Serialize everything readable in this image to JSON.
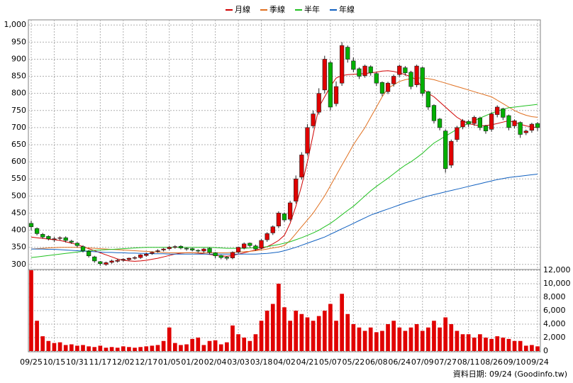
{
  "chart_data": {
    "type": "candlestick",
    "categories": [
      "09/25",
      null,
      null,
      null,
      "10/15",
      null,
      null,
      null,
      "10/31",
      null,
      null,
      null,
      "11/17",
      null,
      null,
      null,
      "12/02",
      null,
      null,
      null,
      "12/17",
      null,
      null,
      null,
      "01/05",
      null,
      null,
      null,
      "01/20",
      null,
      null,
      null,
      "02/04",
      null,
      null,
      null,
      "03/03",
      null,
      null,
      null,
      "03/18",
      null,
      null,
      null,
      "04/02",
      null,
      null,
      null,
      "04/21",
      null,
      null,
      null,
      "05/07",
      null,
      null,
      null,
      "05/22",
      null,
      null,
      null,
      "06/08",
      null,
      null,
      null,
      "06/24",
      null,
      null,
      null,
      "07/09",
      null,
      null,
      null,
      "07/27",
      null,
      null,
      null,
      "08/11",
      null,
      null,
      null,
      "08/26",
      null,
      null,
      null,
      "09/10",
      null,
      null,
      null,
      "09/24"
    ],
    "open": [
      420,
      405,
      388,
      382,
      372,
      376,
      378,
      368,
      362,
      352,
      338,
      322,
      308,
      300,
      306,
      309,
      312,
      314,
      318,
      320,
      326,
      332,
      338,
      342,
      346,
      350,
      353,
      347,
      346,
      341,
      339,
      347,
      334,
      326,
      321,
      319,
      336,
      348,
      362,
      354,
      348,
      372,
      392,
      412,
      448,
      432,
      485,
      555,
      625,
      705,
      745,
      810,
      890,
      770,
      830,
      935,
      895,
      872,
      852,
      878,
      858,
      832,
      805,
      828,
      855,
      875,
      862,
      825,
      875,
      805,
      765,
      725,
      690,
      590,
      665,
      702,
      718,
      712,
      728,
      705,
      695,
      738,
      755,
      735,
      705,
      715,
      685,
      692,
      712
    ],
    "high": [
      428,
      408,
      392,
      385,
      380,
      382,
      382,
      372,
      365,
      356,
      342,
      325,
      310,
      308,
      314,
      316,
      318,
      320,
      324,
      330,
      334,
      338,
      344,
      348,
      354,
      356,
      356,
      350,
      348,
      344,
      348,
      350,
      336,
      328,
      324,
      338,
      352,
      364,
      364,
      358,
      374,
      394,
      414,
      455,
      452,
      486,
      560,
      628,
      710,
      750,
      815,
      910,
      895,
      835,
      950,
      940,
      905,
      876,
      884,
      882,
      862,
      835,
      834,
      855,
      884,
      880,
      866,
      884,
      878,
      808,
      768,
      728,
      695,
      665,
      705,
      725,
      722,
      735,
      732,
      708,
      745,
      765,
      758,
      738,
      724,
      718,
      694,
      714,
      716
    ],
    "low": [
      400,
      385,
      375,
      370,
      366,
      370,
      364,
      360,
      350,
      335,
      320,
      305,
      296,
      296,
      302,
      305,
      308,
      310,
      314,
      316,
      322,
      328,
      334,
      338,
      342,
      346,
      344,
      340,
      338,
      335,
      334,
      330,
      318,
      315,
      312,
      315,
      332,
      344,
      350,
      340,
      344,
      366,
      386,
      406,
      424,
      426,
      478,
      548,
      618,
      698,
      738,
      800,
      750,
      762,
      822,
      890,
      862,
      842,
      846,
      852,
      822,
      792,
      798,
      820,
      848,
      852,
      812,
      818,
      792,
      752,
      712,
      692,
      568,
      582,
      658,
      695,
      702,
      705,
      692,
      682,
      688,
      730,
      722,
      692,
      698,
      670,
      678,
      685,
      690
    ],
    "close": [
      410,
      390,
      380,
      375,
      375,
      378,
      370,
      365,
      355,
      340,
      325,
      310,
      302,
      305,
      310,
      312,
      315,
      318,
      320,
      328,
      330,
      335,
      340,
      345,
      350,
      352,
      348,
      345,
      342,
      340,
      345,
      335,
      325,
      320,
      318,
      335,
      350,
      360,
      355,
      345,
      370,
      390,
      410,
      450,
      430,
      480,
      550,
      620,
      700,
      740,
      800,
      900,
      760,
      820,
      940,
      900,
      870,
      850,
      880,
      860,
      830,
      800,
      830,
      850,
      880,
      860,
      820,
      880,
      800,
      760,
      720,
      700,
      580,
      660,
      700,
      720,
      710,
      730,
      700,
      690,
      740,
      760,
      730,
      700,
      720,
      680,
      690,
      710,
      700
    ],
    "up_color": "#e00000",
    "down_color": "#00b000",
    "series": [
      {
        "name": "月線",
        "color": "#d00000",
        "values": [
          380,
          378,
          376,
          374,
          372,
          370,
          366,
          362,
          358,
          352,
          346,
          340,
          334,
          328,
          322,
          316,
          312,
          310,
          309,
          310,
          312,
          315,
          318,
          322,
          326,
          330,
          333,
          334,
          334,
          333,
          331,
          329,
          327,
          325,
          324,
          326,
          330,
          334,
          338,
          342,
          346,
          352,
          360,
          370,
          385,
          420,
          470,
          530,
          600,
          680,
          760,
          790,
          820,
          845,
          852,
          855,
          856,
          857,
          858,
          860,
          862,
          865,
          866,
          864,
          860,
          855,
          848,
          840,
          815,
          800,
          790,
          775,
          760,
          745,
          730,
          720,
          712,
          708,
          705,
          706,
          708,
          712,
          716,
          720,
          715,
          710,
          705,
          702,
          700
        ]
      },
      {
        "name": "季線",
        "color": "#e07020",
        "values": [
          345,
          346,
          347,
          348,
          349,
          350,
          350,
          350,
          350,
          349,
          348,
          347,
          346,
          345,
          344,
          343,
          342,
          341,
          340,
          339,
          338,
          337,
          336,
          335,
          334,
          334,
          334,
          334,
          334,
          334,
          334,
          334,
          334,
          334,
          334,
          335,
          336,
          337,
          338,
          340,
          342,
          345,
          348,
          351,
          355,
          370,
          390,
          410,
          430,
          450,
          475,
          500,
          530,
          560,
          590,
          620,
          650,
          675,
          700,
          730,
          760,
          790,
          815,
          825,
          835,
          840,
          843,
          845,
          845,
          843,
          840,
          835,
          830,
          825,
          820,
          815,
          810,
          805,
          800,
          795,
          790,
          780,
          770,
          760,
          750,
          742,
          736,
          732,
          730
        ]
      },
      {
        "name": "半年",
        "color": "#20c020",
        "values": [
          320,
          322,
          324,
          326,
          328,
          330,
          332,
          334,
          336,
          338,
          340,
          341,
          342,
          343,
          344,
          345,
          346,
          347,
          348,
          349,
          350,
          350,
          350,
          350,
          350,
          350,
          350,
          350,
          350,
          350,
          350,
          350,
          349,
          348,
          347,
          347,
          347,
          347,
          348,
          349,
          350,
          352,
          355,
          358,
          362,
          366,
          372,
          378,
          385,
          392,
          400,
          410,
          420,
          432,
          445,
          458,
          470,
          485,
          500,
          515,
          528,
          540,
          552,
          565,
          578,
          590,
          600,
          612,
          625,
          640,
          655,
          665,
          675,
          685,
          695,
          705,
          712,
          720,
          728,
          735,
          742,
          748,
          753,
          758,
          760,
          762,
          764,
          766,
          768
        ]
      },
      {
        "name": "年線",
        "color": "#1060c0",
        "values": [
          345,
          345,
          345,
          344,
          344,
          343,
          342,
          341,
          340,
          339,
          338,
          337,
          336,
          335,
          335,
          334,
          334,
          333,
          333,
          332,
          332,
          331,
          331,
          331,
          330,
          330,
          330,
          330,
          330,
          330,
          330,
          330,
          330,
          330,
          330,
          330,
          330,
          330,
          330,
          330,
          331,
          332,
          334,
          336,
          340,
          345,
          350,
          356,
          362,
          368,
          374,
          380,
          388,
          396,
          404,
          412,
          420,
          428,
          436,
          444,
          450,
          456,
          462,
          468,
          474,
          480,
          485,
          490,
          495,
          500,
          504,
          508,
          512,
          516,
          520,
          524,
          528,
          532,
          536,
          540,
          544,
          548,
          551,
          554,
          556,
          558,
          560,
          562,
          564
        ]
      }
    ],
    "ylim": [
      285,
      1015
    ],
    "yticks": [
      300,
      350,
      400,
      450,
      500,
      550,
      600,
      650,
      700,
      750,
      800,
      850,
      900,
      950,
      {
        "value": 1000,
        "label": "1,000"
      }
    ],
    "grid": true,
    "volume": {
      "color": "#e00000",
      "values": [
        12000,
        4500,
        2200,
        1500,
        1200,
        1300,
        900,
        1000,
        800,
        900,
        700,
        600,
        800,
        500,
        600,
        500,
        700,
        600,
        500,
        600,
        700,
        800,
        900,
        1500,
        3500,
        1200,
        900,
        1000,
        1800,
        2000,
        900,
        1500,
        1600,
        1000,
        1300,
        3800,
        2500,
        2000,
        1500,
        2500,
        4500,
        6000,
        7000,
        10000,
        6500,
        4500,
        6000,
        5500,
        5000,
        4500,
        5200,
        6000,
        7000,
        4500,
        8500,
        5500,
        4000,
        3500,
        3000,
        3500,
        2800,
        3000,
        4000,
        4500,
        3500,
        3000,
        3500,
        4000,
        3000,
        3500,
        4500,
        3500,
        5000,
        4000,
        3000,
        2500,
        2500,
        2000,
        2500,
        2000,
        1800,
        2200,
        2000,
        1800,
        1500,
        1500,
        800,
        900,
        700
      ],
      "ylim": [
        0,
        12000
      ],
      "yticks": [
        0,
        {
          "value": 2000,
          "label": "2,000"
        },
        {
          "value": 4000,
          "label": "4,000"
        },
        {
          "value": 6000,
          "label": "6,000"
        },
        {
          "value": 8000,
          "label": "8,000"
        },
        {
          "value": 10000,
          "label": "10,000"
        },
        {
          "value": 12000,
          "label": "12,000"
        }
      ]
    },
    "footer": "資料日期: 09/24 (Goodinfo.tw)"
  }
}
